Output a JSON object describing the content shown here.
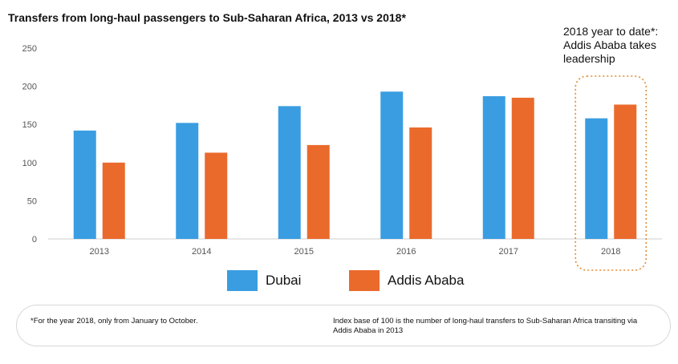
{
  "colors": {
    "dubai": "#3a9de1",
    "addis": "#ea6a2c",
    "highlight": "#e8892f"
  },
  "annotation": {
    "line1": "2018 year to date*:",
    "line2": "Addis Ababa takes",
    "line3": "leadership"
  },
  "footnotes": {
    "left": "*For the year 2018, only from January to October.",
    "right": "Index base of 100 is the number of  long-haul transfers to Sub-Saharan Africa transiting via Addis Ababa in 2013"
  },
  "chart_data": {
    "type": "bar",
    "title": "Transfers from long-haul passengers to Sub-Saharan Africa, 2013 vs 2018*",
    "xlabel": "",
    "ylabel": "",
    "categories": [
      "2013",
      "2014",
      "2015",
      "2016",
      "2017",
      "2018"
    ],
    "series": [
      {
        "name": "Dubai",
        "values": [
          142,
          152,
          174,
          193,
          187,
          158
        ]
      },
      {
        "name": "Addis Ababa",
        "values": [
          100,
          113,
          123,
          146,
          185,
          176
        ]
      }
    ],
    "ylim": [
      0,
      250
    ],
    "yticks": [
      "0",
      "50",
      "100",
      "150",
      "200",
      "250"
    ],
    "grid": false,
    "legend_position": "bottom",
    "highlighted_category": "2018"
  }
}
